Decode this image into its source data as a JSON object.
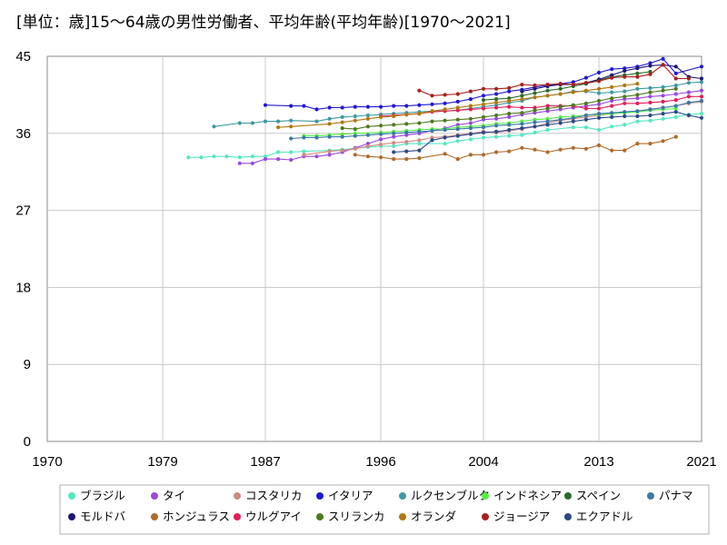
{
  "chart_data": {
    "type": "line",
    "title": "[単位：歳]15～64歳の男性労働者、平均年齢(平均年齢)[1970～2021]",
    "xlim": [
      1970,
      2021
    ],
    "ylim": [
      0,
      45
    ],
    "xticks": [
      "1970",
      "1979",
      "1987",
      "1996",
      "2004",
      "2013",
      "2021"
    ],
    "yticks": [
      "0",
      "9",
      "18",
      "27",
      "36",
      "45"
    ],
    "grid": true,
    "legend_position": "bottom",
    "series": [
      {
        "name": "ブラジル",
        "color": "#55e8c0",
        "x": [
          1981,
          1982,
          1983,
          1984,
          1985,
          1986,
          1987,
          1988,
          1989,
          1990,
          1992,
          1993,
          1995,
          1996,
          1997,
          1998,
          1999,
          2001,
          2002,
          2003,
          2004,
          2005,
          2006,
          2007,
          2008,
          2009,
          2011,
          2012,
          2013,
          2014,
          2015,
          2016,
          2017,
          2018,
          2019,
          2020,
          2021
        ],
        "y": [
          33.2,
          33.2,
          33.3,
          33.3,
          33.2,
          33.3,
          33.3,
          33.8,
          33.8,
          33.9,
          34.0,
          34.1,
          34.4,
          34.5,
          34.5,
          34.8,
          34.8,
          34.8,
          35.1,
          35.3,
          35.5,
          35.6,
          35.7,
          35.8,
          36.1,
          36.4,
          36.7,
          36.7,
          36.4,
          36.8,
          37.0,
          37.4,
          37.5,
          37.7,
          37.9,
          38.2,
          38.3
        ]
      },
      {
        "name": "タイ",
        "color": "#9a48e0",
        "x": [
          1985,
          1986,
          1987,
          1988,
          1989,
          1990,
          1991,
          1992,
          1993,
          1994,
          1995,
          1996,
          1997,
          1998,
          1999,
          2000,
          2001,
          2002,
          2003,
          2004,
          2005,
          2006,
          2007,
          2008,
          2009,
          2010,
          2011,
          2012,
          2013,
          2014,
          2015,
          2016,
          2017,
          2018,
          2019,
          2020,
          2021
        ],
        "y": [
          32.5,
          32.5,
          33.0,
          33.0,
          32.9,
          33.3,
          33.3,
          33.5,
          33.8,
          34.3,
          34.8,
          35.3,
          35.6,
          35.8,
          36.0,
          36.3,
          36.6,
          37.0,
          37.2,
          37.6,
          37.7,
          37.9,
          38.2,
          38.4,
          38.6,
          38.8,
          39.0,
          39.2,
          39.4,
          39.8,
          40.0,
          40.1,
          40.3,
          40.4,
          40.6,
          40.8,
          41.0
        ]
      },
      {
        "name": "コスタリカ",
        "color": "#d08a80",
        "x": [
          1990,
          1992,
          1993,
          1994,
          1995,
          1996,
          1997,
          1998,
          1999,
          2000,
          2001,
          2002,
          2003,
          2004,
          2005,
          2006,
          2007,
          2008,
          2009,
          2010,
          2011,
          2012,
          2013,
          2014,
          2015,
          2016,
          2017,
          2018,
          2019,
          2020,
          2021
        ],
        "y": [
          33.5,
          33.9,
          34.0,
          34.2,
          34.5,
          34.7,
          34.9,
          35.0,
          35.2,
          35.5,
          35.6,
          35.8,
          36.0,
          36.2,
          36.1,
          36.3,
          36.5,
          36.8,
          37.2,
          37.5,
          37.7,
          37.9,
          38.1,
          38.3,
          38.5,
          38.6,
          38.8,
          39.0,
          39.2,
          39.5,
          39.7
        ]
      },
      {
        "name": "イタリア",
        "color": "#2218d0",
        "x": [
          1987,
          1989,
          1990,
          1991,
          1992,
          1993,
          1994,
          1995,
          1996,
          1997,
          1998,
          1999,
          2000,
          2001,
          2002,
          2003,
          2004,
          2005,
          2006,
          2007,
          2008,
          2009,
          2010,
          2011,
          2012,
          2013,
          2014,
          2015,
          2016,
          2017,
          2018,
          2019,
          2021
        ],
        "y": [
          39.3,
          39.2,
          39.2,
          38.8,
          39.0,
          39.0,
          39.1,
          39.1,
          39.1,
          39.2,
          39.2,
          39.3,
          39.4,
          39.5,
          39.7,
          40.0,
          40.4,
          40.6,
          40.9,
          41.1,
          41.4,
          41.6,
          41.8,
          42.0,
          42.5,
          43.1,
          43.5,
          43.6,
          43.8,
          44.2,
          44.7,
          43.0,
          43.8
        ]
      },
      {
        "name": "ルクセンブルク",
        "color": "#3e9aa0",
        "x": [
          1983,
          1985,
          1986,
          1987,
          1988,
          1989,
          1991,
          1992,
          1993,
          1994,
          1995,
          1996,
          1997,
          1998,
          1999,
          2000,
          2001,
          2002,
          2003,
          2004,
          2005,
          2006,
          2007,
          2008,
          2009,
          2010,
          2011,
          2012,
          2013,
          2014,
          2015,
          2016,
          2017,
          2018,
          2019,
          2020,
          2021
        ],
        "y": [
          36.8,
          37.2,
          37.2,
          37.4,
          37.4,
          37.5,
          37.4,
          37.7,
          37.9,
          38.0,
          38.1,
          38.2,
          38.3,
          38.4,
          38.5,
          38.6,
          38.6,
          38.7,
          38.9,
          39.1,
          39.3,
          39.6,
          39.8,
          40.2,
          40.4,
          40.6,
          40.9,
          40.9,
          40.7,
          40.8,
          40.9,
          41.2,
          41.3,
          41.4,
          41.6,
          41.9,
          42.0
        ]
      },
      {
        "name": "インドネシア",
        "color": "#55ee44",
        "x": [
          1990,
          1991,
          1992,
          1993,
          1994,
          1996,
          1997,
          1998,
          1999,
          2000,
          2001,
          2002,
          2003,
          2004,
          2005,
          2006,
          2007,
          2008,
          2009,
          2010,
          2011,
          2012,
          2013,
          2014,
          2015,
          2016,
          2017,
          2018,
          2019
        ],
        "y": [
          35.7,
          35.7,
          35.8,
          35.9,
          36.0,
          36.1,
          36.2,
          36.3,
          36.4,
          36.5,
          36.5,
          36.7,
          36.8,
          36.9,
          37.1,
          37.2,
          37.4,
          37.6,
          37.7,
          37.9,
          38.0,
          38.1,
          38.2,
          38.3,
          38.4,
          38.5,
          38.7,
          38.8,
          38.9
        ]
      },
      {
        "name": "スペイン",
        "color": "#2a6a2a",
        "x": [
          2004,
          2005,
          2006,
          2007,
          2008,
          2009,
          2010,
          2011,
          2012,
          2013,
          2014,
          2015,
          2016,
          2017
        ],
        "y": [
          39.9,
          40.0,
          40.1,
          40.4,
          40.7,
          41.0,
          41.2,
          41.5,
          41.8,
          42.2,
          42.6,
          42.8,
          43.0,
          43.2
        ]
      },
      {
        "name": "パナマ",
        "color": "#3a78a8",
        "x": [
          1989,
          1990,
          1991,
          1992,
          1993,
          1994,
          1995,
          1996,
          1997,
          1998,
          1999,
          2000,
          2001,
          2002,
          2003,
          2004,
          2005,
          2006,
          2007,
          2008,
          2009,
          2010,
          2011,
          2012,
          2013,
          2014,
          2015,
          2016,
          2017,
          2018,
          2019,
          2020,
          2021
        ],
        "y": [
          35.4,
          35.5,
          35.5,
          35.6,
          35.6,
          35.7,
          35.8,
          35.9,
          36.0,
          36.1,
          36.2,
          36.3,
          36.4,
          36.5,
          36.6,
          36.7,
          36.9,
          37.0,
          37.1,
          37.3,
          37.4,
          37.6,
          37.8,
          38.1,
          38.3,
          38.4,
          38.5,
          38.6,
          38.8,
          39.0,
          39.2,
          39.6,
          39.8
        ]
      },
      {
        "name": "モルドバ",
        "color": "#1c1878",
        "x": [
          2007,
          2008,
          2009,
          2010,
          2011,
          2012,
          2013,
          2014,
          2015,
          2016,
          2017,
          2018,
          2019,
          2020,
          2021
        ],
        "y": [
          40.9,
          41.2,
          41.5,
          41.7,
          41.7,
          41.9,
          42.3,
          42.8,
          43.3,
          43.6,
          43.9,
          44.0,
          43.8,
          42.6,
          42.4
        ]
      },
      {
        "name": "ホンジュラス",
        "color": "#b06a2a",
        "x": [
          1994,
          1995,
          1996,
          1997,
          1998,
          1999,
          2001,
          2002,
          2003,
          2004,
          2005,
          2006,
          2007,
          2008,
          2009,
          2010,
          2011,
          2012,
          2013,
          2014,
          2015,
          2016,
          2017,
          2018,
          2019
        ],
        "y": [
          33.5,
          33.3,
          33.2,
          33.0,
          33.0,
          33.1,
          33.6,
          33.0,
          33.5,
          33.5,
          33.8,
          33.9,
          34.3,
          34.1,
          33.8,
          34.1,
          34.3,
          34.2,
          34.6,
          34.0,
          34.0,
          34.8,
          34.8,
          35.1,
          35.6
        ]
      },
      {
        "name": "ウルグアイ",
        "color": "#e01e5a",
        "x": [
          1996,
          1997,
          1998,
          1999,
          2000,
          2001,
          2002,
          2003,
          2004,
          2005,
          2006,
          2007,
          2008,
          2009,
          2010,
          2011,
          2012,
          2013,
          2014,
          2015,
          2016,
          2017,
          2018,
          2019,
          2020,
          2021
        ],
        "y": [
          38.0,
          38.1,
          38.2,
          38.3,
          38.5,
          38.6,
          38.7,
          38.8,
          38.9,
          39.0,
          39.1,
          39.0,
          39.0,
          39.2,
          39.2,
          39.2,
          38.9,
          38.9,
          39.2,
          39.5,
          39.5,
          39.6,
          39.7,
          39.9,
          40.3,
          40.3
        ]
      },
      {
        "name": "スリランカ",
        "color": "#4e7a1e",
        "x": [
          1993,
          1994,
          1995,
          1996,
          1997,
          1998,
          1999,
          2000,
          2001,
          2002,
          2003,
          2004,
          2005,
          2006,
          2007,
          2008,
          2009,
          2010,
          2011,
          2012,
          2013,
          2014,
          2015,
          2016,
          2017,
          2018,
          2019
        ],
        "y": [
          36.6,
          36.5,
          36.8,
          36.9,
          37.0,
          37.1,
          37.2,
          37.4,
          37.5,
          37.6,
          37.7,
          37.9,
          38.1,
          38.3,
          38.4,
          38.7,
          38.9,
          39.1,
          39.3,
          39.5,
          39.8,
          40.1,
          40.3,
          40.5,
          40.8,
          41.0,
          41.2
        ]
      },
      {
        "name": "オランダ",
        "color": "#b07810",
        "x": [
          1988,
          1989,
          1992,
          1993,
          1994,
          1995,
          1996,
          1997,
          1998,
          1999,
          2000,
          2001,
          2002,
          2003,
          2004,
          2005,
          2006,
          2007,
          2008,
          2009,
          2010,
          2011,
          2012,
          2013,
          2014,
          2015,
          2016
        ],
        "y": [
          36.7,
          36.8,
          37.1,
          37.3,
          37.5,
          37.7,
          37.9,
          38.0,
          38.2,
          38.3,
          38.6,
          38.8,
          39.0,
          39.2,
          39.4,
          39.6,
          39.8,
          40.0,
          40.2,
          40.4,
          40.6,
          40.8,
          41.0,
          41.2,
          41.4,
          41.6,
          41.8
        ]
      },
      {
        "name": "ジョージア",
        "color": "#a8201e",
        "x": [
          1999,
          2000,
          2001,
          2002,
          2003,
          2004,
          2005,
          2006,
          2007,
          2008,
          2009,
          2010,
          2011,
          2012,
          2013,
          2014,
          2015,
          2016,
          2017,
          2018,
          2019,
          2020
        ],
        "y": [
          41.0,
          40.4,
          40.5,
          40.6,
          40.9,
          41.2,
          41.2,
          41.3,
          41.7,
          41.6,
          41.7,
          41.8,
          41.7,
          41.9,
          42.1,
          42.5,
          42.6,
          42.6,
          42.9,
          44.0,
          42.4,
          42.4
        ]
      },
      {
        "name": "エクアドル",
        "color": "#2c4888",
        "x": [
          1997,
          1998,
          1999,
          2000,
          2001,
          2002,
          2003,
          2004,
          2005,
          2006,
          2007,
          2008,
          2009,
          2010,
          2011,
          2012,
          2013,
          2014,
          2015,
          2016,
          2017,
          2018,
          2019,
          2020,
          2021
        ],
        "y": [
          33.8,
          33.9,
          34.0,
          35.2,
          35.5,
          35.7,
          35.9,
          36.1,
          36.2,
          36.4,
          36.6,
          36.8,
          37.0,
          37.2,
          37.4,
          37.6,
          37.8,
          37.9,
          38.0,
          38.0,
          38.1,
          38.3,
          38.5,
          38.1,
          37.8
        ]
      }
    ]
  }
}
